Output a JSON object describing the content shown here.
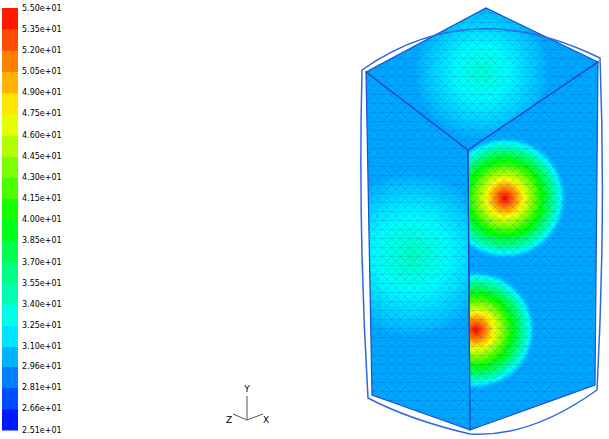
{
  "chart_data": {
    "type": "contour",
    "colorbar": {
      "range": [
        25.1,
        55.0
      ],
      "ticks": [
        {
          "value": 25.1,
          "label": "2.51e+01"
        },
        {
          "value": 26.6,
          "label": "2.66e+01"
        },
        {
          "value": 28.1,
          "label": "2.81e+01"
        },
        {
          "value": 29.6,
          "label": "2.96e+01"
        },
        {
          "value": 31.0,
          "label": "3.10e+01"
        },
        {
          "value": 32.5,
          "label": "3.25e+01"
        },
        {
          "value": 34.0,
          "label": "3.40e+01"
        },
        {
          "value": 35.5,
          "label": "3.55e+01"
        },
        {
          "value": 37.0,
          "label": "3.70e+01"
        },
        {
          "value": 38.5,
          "label": "3.85e+01"
        },
        {
          "value": 40.0,
          "label": "4.00e+01"
        },
        {
          "value": 41.5,
          "label": "4.15e+01"
        },
        {
          "value": 43.0,
          "label": "4.30e+01"
        },
        {
          "value": 44.5,
          "label": "4.45e+01"
        },
        {
          "value": 46.0,
          "label": "4.60e+01"
        },
        {
          "value": 47.5,
          "label": "4.75e+01"
        },
        {
          "value": 49.0,
          "label": "4.90e+01"
        },
        {
          "value": 50.5,
          "label": "5.05e+01"
        },
        {
          "value": 52.0,
          "label": "5.20e+01"
        },
        {
          "value": 53.5,
          "label": "5.35e+01"
        },
        {
          "value": 55.0,
          "label": "5.50e+01"
        }
      ]
    },
    "axes_labels": [
      "X",
      "Y",
      "Z"
    ],
    "field": {
      "background": 30.0,
      "spots": [
        34.0,
        34.5,
        55.0,
        55.0
      ]
    }
  }
}
